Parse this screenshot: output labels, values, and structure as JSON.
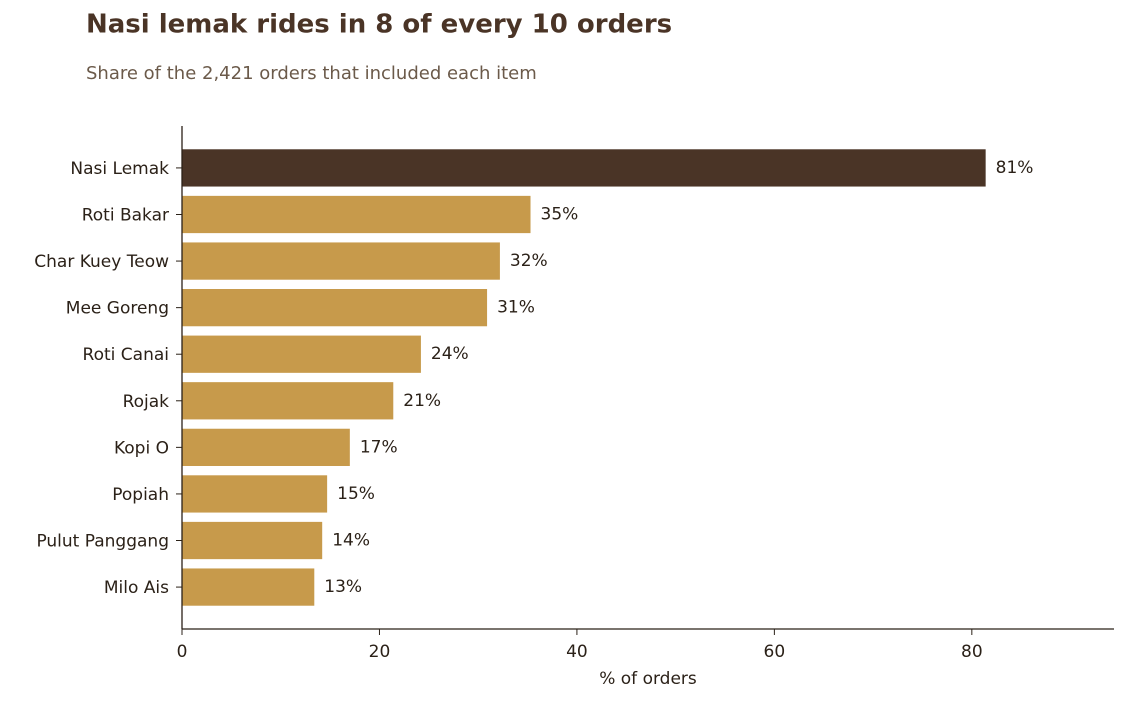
{
  "chart_data": {
    "type": "barh",
    "title": "Nasi lemak rides in 8 of every 10 orders",
    "subtitle": "Share of the 2,421 orders that included each item",
    "x_label": "% of orders",
    "categories": [
      "Nasi Lemak",
      "Roti Bakar",
      "Char Kuey Teow",
      "Mee Goreng",
      "Roti Canai",
      "Rojak",
      "Kopi O",
      "Popiah",
      "Pulut Panggang",
      "Milo Ais"
    ],
    "values": [
      81.4,
      35.3,
      32.2,
      30.9,
      24.2,
      21.4,
      17.0,
      14.7,
      14.2,
      13.4
    ],
    "value_labels": [
      "81%",
      "35%",
      "32%",
      "31%",
      "24%",
      "21%",
      "17%",
      "15%",
      "14%",
      "13%"
    ],
    "colors": [
      "#4a3426",
      "#c79a4b",
      "#c79a4b",
      "#c79a4b",
      "#c79a4b",
      "#c79a4b",
      "#c79a4b",
      "#c79a4b",
      "#c79a4b",
      "#c79a4b"
    ],
    "xlim": [
      0,
      94.4
    ],
    "xticks": [
      0,
      20,
      40,
      60,
      80
    ],
    "grid": false
  }
}
